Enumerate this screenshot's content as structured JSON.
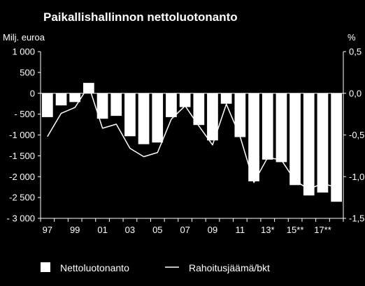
{
  "chart_data": {
    "type": "bar",
    "title": "Paikallishallinnon nettoluotonanto",
    "left_unit": "Milj. euroa",
    "right_unit": "%",
    "y_left": {
      "min": -3000,
      "max": 1000,
      "ticks": [
        1000,
        500,
        0,
        -500,
        -1000,
        -1500,
        -2000,
        -2500,
        -3000
      ],
      "tick_labels": [
        "1 000",
        "500",
        "0",
        "- 500",
        "-1 000",
        "-1 500",
        "-2 000",
        "-2 500",
        "- 3 000"
      ]
    },
    "y_right": {
      "min": -1.5,
      "max": 0.5,
      "ticks": [
        0.5,
        0.0,
        -0.5,
        -1.0,
        -1.5
      ],
      "tick_labels": [
        "0,5",
        "0,0",
        "-0,5",
        "-1,0",
        "-1,5"
      ]
    },
    "years": [
      1997,
      1998,
      1999,
      2000,
      2001,
      2002,
      2003,
      2004,
      2005,
      2006,
      2007,
      2008,
      2009,
      2010,
      2011,
      2012,
      2013,
      2014,
      2015,
      2016,
      2017,
      2018
    ],
    "x_tick_labels": [
      "97",
      "",
      "99",
      "",
      "01",
      "",
      "03",
      "",
      "05",
      "",
      "07",
      "",
      "09",
      "",
      "11",
      "",
      "13*",
      "",
      "15**",
      "",
      "17**",
      ""
    ],
    "series": [
      {
        "name": "Nettoluotonanto",
        "axis": "left",
        "kind": "bar",
        "values": [
          -570,
          -290,
          -210,
          250,
          -610,
          -540,
          -1030,
          -1220,
          -1180,
          -570,
          -330,
          -760,
          -1130,
          -250,
          -1050,
          -2110,
          -1590,
          -1650,
          -2200,
          -2450,
          -2380,
          -2600
        ]
      },
      {
        "name": "Rahoitusjäämä/bkt",
        "axis": "right",
        "kind": "line",
        "values": [
          -0.52,
          -0.24,
          -0.17,
          0.09,
          -0.42,
          -0.37,
          -0.66,
          -0.76,
          -0.71,
          -0.31,
          -0.15,
          -0.39,
          -0.62,
          -0.13,
          -0.52,
          -1.07,
          -0.77,
          -0.8,
          -1.05,
          -1.15,
          -1.08,
          -1.13
        ]
      }
    ],
    "legend_position": "bottom"
  },
  "colors": {
    "background": "#000000",
    "bar": "#ffffff",
    "line": "#ffffff",
    "axis": "#ffffff"
  }
}
